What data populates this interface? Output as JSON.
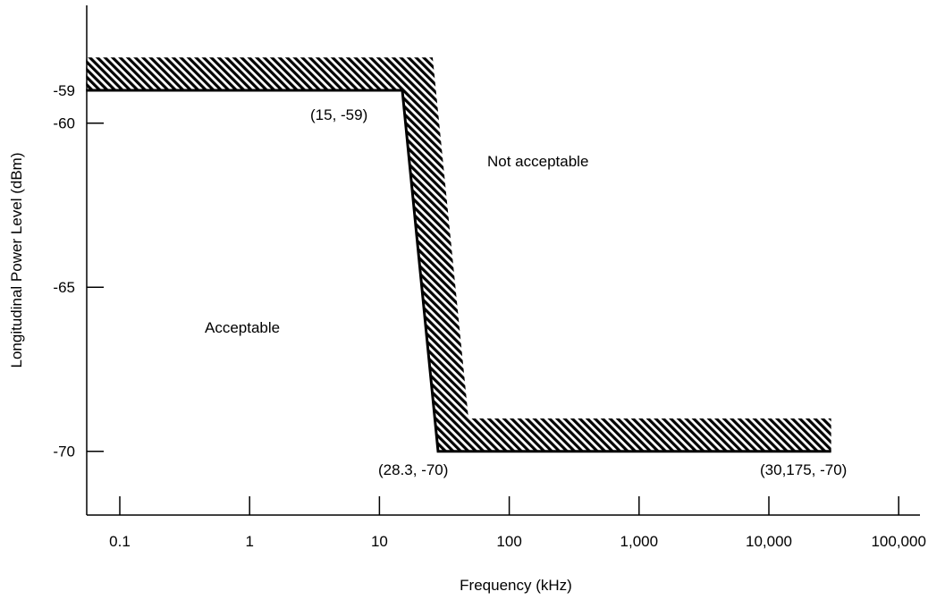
{
  "chart_data": {
    "type": "line",
    "title": "",
    "xlabel": "Frequency (kHz)",
    "ylabel": "Longitudinal Power Level (dBm)",
    "x_scale": "log",
    "xlim": [
      0.055,
      40000
    ],
    "ylim": [
      -72,
      -57
    ],
    "x_ticks": [
      0.1,
      1,
      10,
      100,
      1000,
      10000,
      100000
    ],
    "x_tick_labels": [
      "0.1",
      "1",
      "10",
      "100",
      "1,000",
      "10,000",
      "100,000"
    ],
    "y_ticks": [
      -59,
      -60,
      -65,
      -70
    ],
    "y_tick_labels": [
      "-59",
      "-60",
      "-65",
      "-70"
    ],
    "grid": false,
    "series": [
      {
        "x": [
          0.055,
          15,
          28.3,
          30175
        ],
        "y": [
          -59,
          -59,
          -70,
          -70
        ],
        "color": "#000000"
      }
    ],
    "hatch_band": {
      "x": [
        0.055,
        15,
        28.3,
        30175
      ],
      "y_offset_dBm": 1,
      "color": "#000000"
    },
    "point_labels": [
      {
        "text": "(15, -59)",
        "x": 15,
        "y": -59
      },
      {
        "text": "(28.3, -70)",
        "x": 28.3,
        "y": -70
      },
      {
        "text": "(30,175, -70)",
        "x": 30175,
        "y": -70
      }
    ],
    "region_labels": [
      {
        "text": "Not acceptable",
        "region": "above-right"
      },
      {
        "text": "Acceptable",
        "region": "below-left"
      }
    ]
  }
}
